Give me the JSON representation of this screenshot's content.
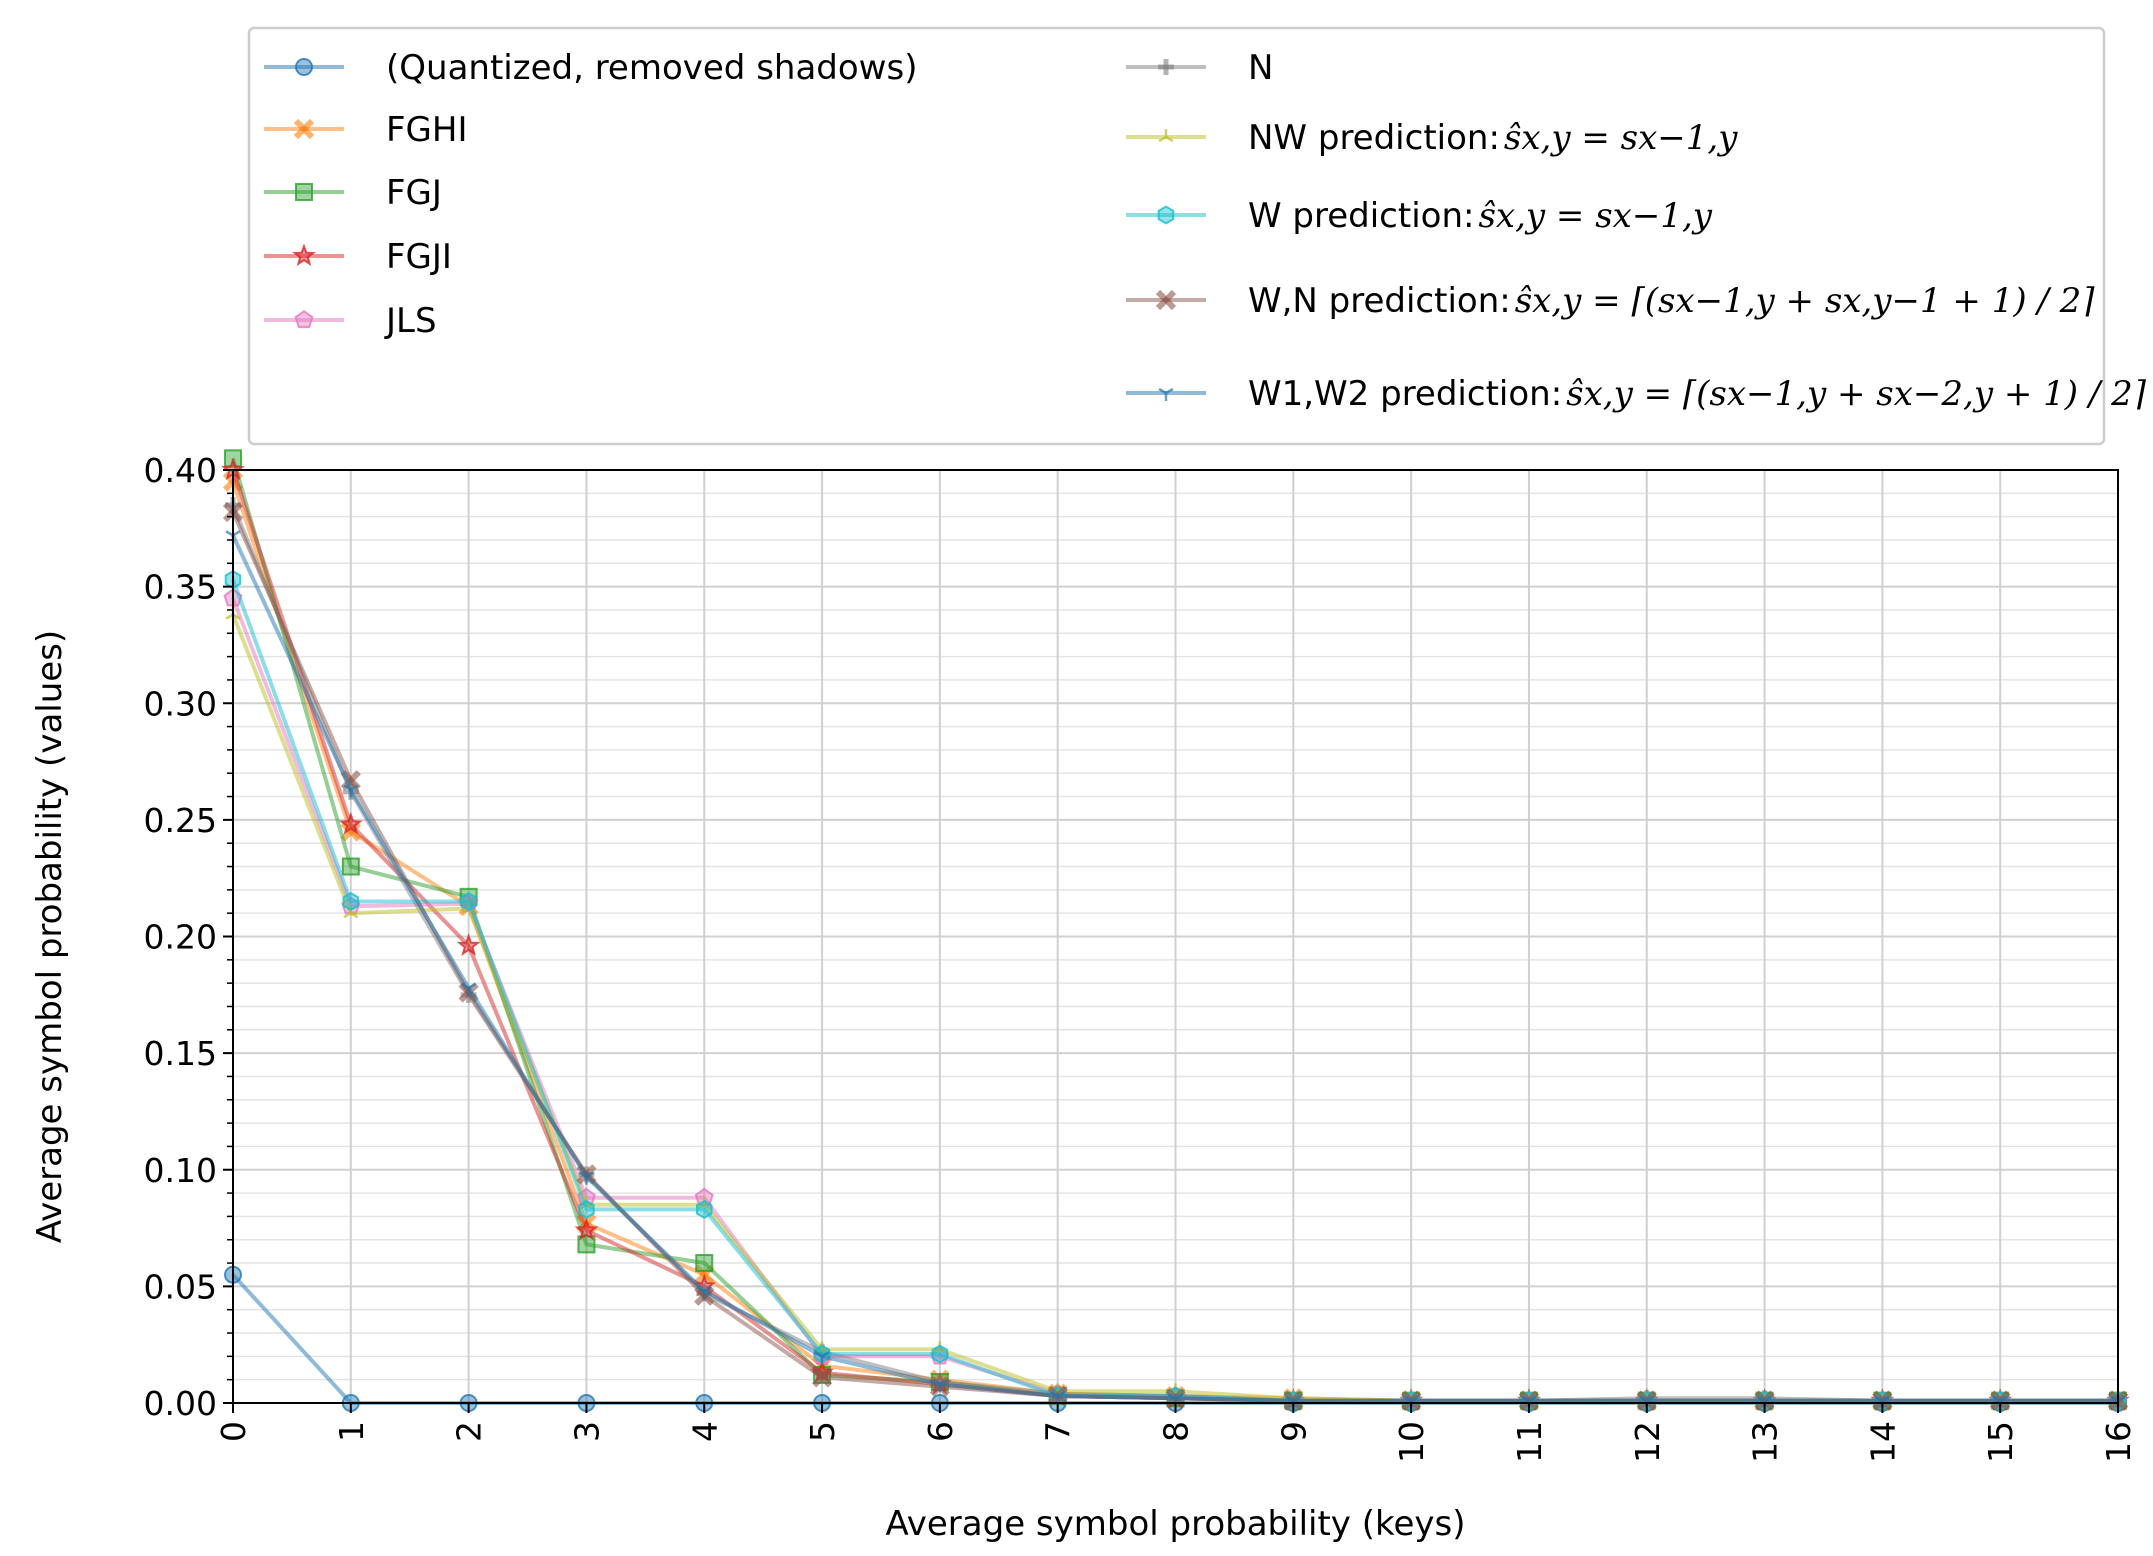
{
  "chart_data": {
    "type": "line",
    "xlabel": "Average symbol probability (keys)",
    "ylabel": "Average symbol probability (values)",
    "xlim": [
      0,
      16
    ],
    "ylim": [
      0,
      0.4
    ],
    "x": [
      0,
      1,
      2,
      3,
      4,
      5,
      6,
      7,
      8,
      9,
      10,
      11,
      12,
      13,
      14,
      15,
      16
    ],
    "x_ticks": [
      "0",
      "1",
      "2",
      "3",
      "4",
      "5",
      "6",
      "7",
      "8",
      "9",
      "10",
      "11",
      "12",
      "13",
      "14",
      "15",
      "16"
    ],
    "y_ticks": [
      "0.00",
      "0.05",
      "0.10",
      "0.15",
      "0.20",
      "0.25",
      "0.30",
      "0.35",
      "0.40"
    ],
    "grid": true,
    "legend_position": "top",
    "series": [
      {
        "name": "(Quantized, removed shadows)",
        "color": "#1f77b4",
        "marker": "circle",
        "values": [
          0.055,
          0.0,
          0.0,
          0.0,
          0.0,
          0.0,
          0.0,
          0.0,
          0.0,
          0.0,
          0.0,
          0.0,
          0.0,
          0.0,
          0.0,
          0.0,
          0.0
        ]
      },
      {
        "name": "FGHI",
        "color": "#ff7f0e",
        "marker": "x-filled",
        "values": [
          0.395,
          0.245,
          0.213,
          0.077,
          0.055,
          0.016,
          0.01,
          0.004,
          0.003,
          0.002,
          0.001,
          0.001,
          0.001,
          0.001,
          0.001,
          0.001,
          0.001
        ]
      },
      {
        "name": "FGJ",
        "color": "#2ca02c",
        "marker": "square",
        "values": [
          0.405,
          0.23,
          0.217,
          0.068,
          0.06,
          0.012,
          0.009,
          0.003,
          0.002,
          0.001,
          0.001,
          0.001,
          0.001,
          0.001,
          0.001,
          0.001,
          0.001
        ]
      },
      {
        "name": "FGJI",
        "color": "#d62728",
        "marker": "star",
        "values": [
          0.4,
          0.248,
          0.196,
          0.074,
          0.05,
          0.013,
          0.008,
          0.003,
          0.002,
          0.001,
          0.001,
          0.001,
          0.001,
          0.001,
          0.001,
          0.001,
          0.001
        ]
      },
      {
        "name": "JLS",
        "color": "#e377c2",
        "marker": "pentagon",
        "values": [
          0.345,
          0.213,
          0.214,
          0.088,
          0.088,
          0.02,
          0.02,
          0.004,
          0.003,
          0.001,
          0.001,
          0.001,
          0.001,
          0.001,
          0.001,
          0.001,
          0.001
        ]
      },
      {
        "name": "N",
        "color": "#7f7f7f",
        "marker": "plus",
        "values": [
          0.385,
          0.262,
          0.175,
          0.098,
          0.047,
          0.022,
          0.009,
          0.004,
          0.003,
          0.001,
          0.001,
          0.001,
          0.002,
          0.002,
          0.001,
          0.001,
          0.001
        ]
      },
      {
        "name": "NW prediction: ",
        "math": "ŝx,y = sx−1,y",
        "color": "#bcbd22",
        "marker": "tri-up",
        "values": [
          0.338,
          0.21,
          0.212,
          0.085,
          0.085,
          0.023,
          0.023,
          0.005,
          0.005,
          0.002,
          0.001,
          0.001,
          0.001,
          0.001,
          0.001,
          0.001,
          0.001
        ]
      },
      {
        "name": "W prediction: ",
        "math": "ŝx,y = sx−1,y",
        "color": "#17becf",
        "marker": "hexagon",
        "values": [
          0.353,
          0.215,
          0.215,
          0.083,
          0.083,
          0.021,
          0.021,
          0.003,
          0.003,
          0.001,
          0.001,
          0.001,
          0.001,
          0.001,
          0.001,
          0.001,
          0.001
        ]
      },
      {
        "name": "W,N prediction: ",
        "math": "ŝx,y = ⌈(sx−1,y + sx,y−1 + 1) / 2⌉",
        "color": "#8c564b",
        "marker": "x-filled",
        "values": [
          0.382,
          0.267,
          0.176,
          0.098,
          0.046,
          0.011,
          0.007,
          0.003,
          0.002,
          0.001,
          0.001,
          0.001,
          0.001,
          0.001,
          0.001,
          0.001,
          0.001
        ]
      },
      {
        "name": "W1,W2 prediction: ",
        "math": "ŝx,y = ⌈(sx−1,y + sx−2,y + 1) / 2⌉",
        "color": "#1f77b4",
        "marker": "tri-down",
        "values": [
          0.372,
          0.263,
          0.178,
          0.097,
          0.048,
          0.02,
          0.008,
          0.003,
          0.002,
          0.001,
          0.001,
          0.001,
          0.001,
          0.001,
          0.001,
          0.001,
          0.001
        ]
      }
    ]
  }
}
